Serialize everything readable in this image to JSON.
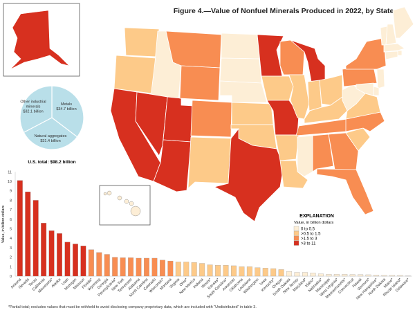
{
  "title": "Figure 4.—Value of Nonfuel Minerals Produced in 2022, by State",
  "footnote": "*Partial total; excludes values that must be withheld to avoid disclosing company proprietary data, which are included with \"Undistributed\" in table 3.",
  "legend": {
    "heading": "EXPLANATION",
    "subheading": "Value, in billion dollars",
    "classes": [
      {
        "label": "0 to 0.5",
        "color": "#fdeed6"
      },
      {
        "label": ">0.5 to 1.5",
        "color": "#fdca89"
      },
      {
        "label": ">1.5 to 3",
        "color": "#f88d52"
      },
      {
        "label": ">3 to 11",
        "color": "#d7301f"
      }
    ]
  },
  "pie": {
    "total_label": "U.S. total: $98.2 billion",
    "color": "#b9dfe9",
    "slices": [
      {
        "name": "Metals",
        "value_label": "$34.7 billion",
        "value": 34.7
      },
      {
        "name": "Natural aggregates",
        "value_label": "$31.4 billion",
        "value": 31.4
      },
      {
        "name": "Other industrial minerals",
        "value_label": "$32.1 billion",
        "value": 32.1
      }
    ]
  },
  "chart_data": {
    "type": "bar",
    "ylabel": "Value, in billion dollars",
    "xlabel": "",
    "ylim": [
      0,
      11
    ],
    "yticks": [
      0,
      1,
      2,
      3,
      4,
      5,
      6,
      7,
      8,
      9,
      10,
      11
    ],
    "categories": [
      "Arizona",
      "Nevada",
      "Texas",
      "California",
      "Minnesota*",
      "Alaska",
      "Utah",
      "Michigan",
      "Missouri",
      "Florida*",
      "Wyoming",
      "Georgia",
      "Pennsylvania*",
      "New York",
      "Tennessee",
      "Alabama",
      "North Carolina",
      "Colorado",
      "Wisconsin*",
      "Montana",
      "Virginia",
      "Ohio*",
      "New Mexico",
      "Indiana",
      "Illinois*",
      "Kansas*",
      "South Carolina*",
      "Arkansas",
      "Oklahoma",
      "Louisiana",
      "Washington",
      "Iowa",
      "Kentucky*",
      "Oregon",
      "South Dakota",
      "New Jersey",
      "Maryland*",
      "Idaho*",
      "Nebraska*",
      "Mississippi",
      "West Virginia*",
      "Massachusetts*",
      "Connecticut",
      "Hawaii",
      "Vermont*",
      "New Hampshire*",
      "North Dakota",
      "Maine*",
      "Rhode Island*",
      "Delaware*"
    ],
    "values": [
      10.1,
      8.9,
      8.0,
      5.6,
      4.8,
      4.5,
      3.6,
      3.4,
      3.2,
      2.8,
      2.5,
      2.3,
      2.0,
      1.95,
      1.95,
      1.9,
      1.9,
      1.9,
      1.7,
      1.6,
      1.5,
      1.5,
      1.45,
      1.35,
      1.2,
      1.15,
      1.15,
      1.1,
      1.0,
      1.0,
      0.9,
      0.85,
      0.8,
      0.7,
      0.5,
      0.4,
      0.4,
      0.35,
      0.25,
      0.2,
      0.2,
      0.2,
      0.18,
      0.17,
      0.15,
      0.12,
      0.1,
      0.1,
      0.1,
      0.03
    ]
  }
}
